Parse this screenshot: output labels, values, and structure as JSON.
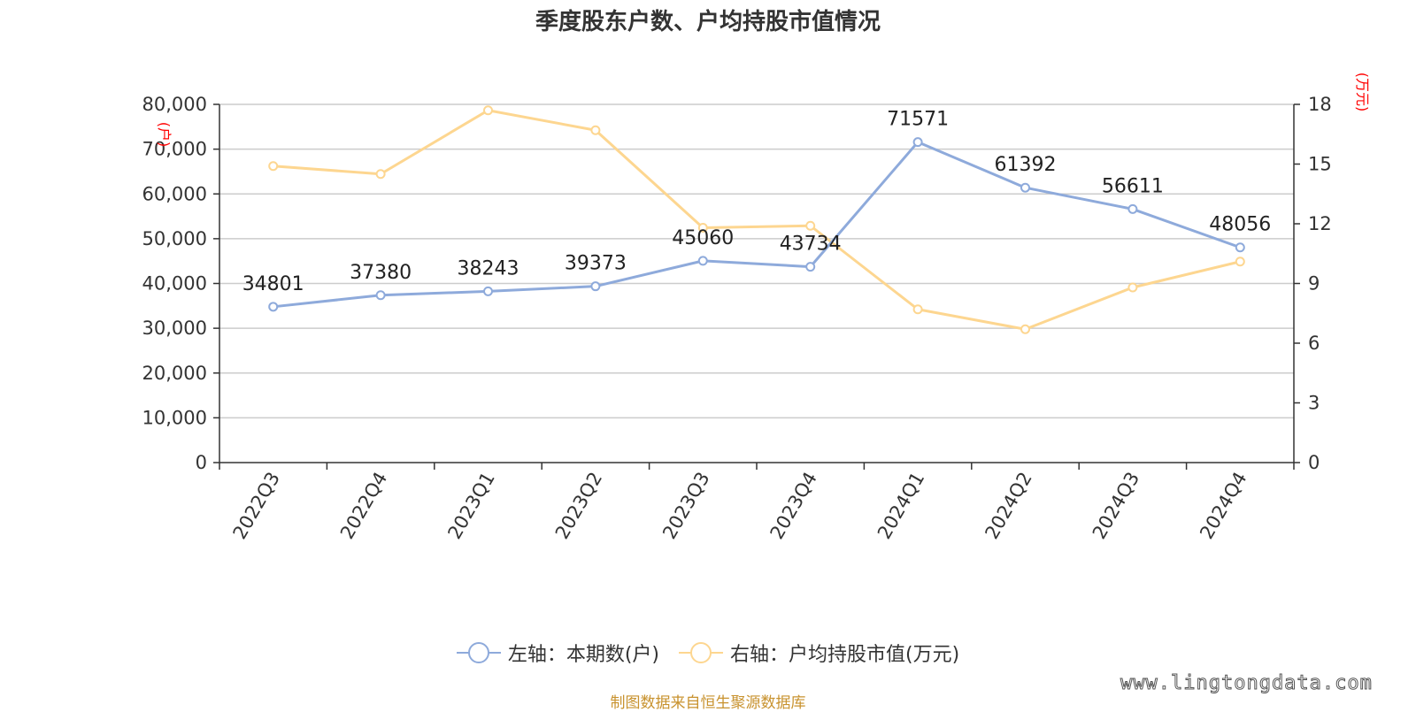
{
  "chart_data": {
    "type": "line",
    "title": "季度股东户数、户均持股市值情况",
    "categories": [
      "2022Q3",
      "2022Q4",
      "2023Q1",
      "2023Q2",
      "2023Q3",
      "2023Q4",
      "2024Q1",
      "2024Q2",
      "2024Q3",
      "2024Q4"
    ],
    "series": [
      {
        "name": "左轴：本期数(户)",
        "axis": "left",
        "color": "#8eaadb",
        "values": [
          34801,
          37380,
          38243,
          39373,
          45060,
          43734,
          71571,
          61392,
          56611,
          48056
        ],
        "data_labels": [
          "34801",
          "37380",
          "38243",
          "39373",
          "45060",
          "43734",
          "71571",
          "61392",
          "56611",
          "48056"
        ]
      },
      {
        "name": "右轴：户均持股市值(万元)",
        "axis": "right",
        "color": "#fdd690",
        "values": [
          14.9,
          14.5,
          17.7,
          16.7,
          11.8,
          11.9,
          7.7,
          6.7,
          8.8,
          10.1
        ]
      }
    ],
    "y_left": {
      "unit": "(户)",
      "ylim": [
        0,
        80000
      ],
      "ticks": [
        0,
        10000,
        20000,
        30000,
        40000,
        50000,
        60000,
        70000,
        80000
      ],
      "tick_labels": [
        "0",
        "10,000",
        "20,000",
        "30,000",
        "40,000",
        "50,000",
        "60,000",
        "70,000",
        "80,000"
      ]
    },
    "y_right": {
      "unit": "(万元)",
      "ylim": [
        0,
        18
      ],
      "ticks": [
        0,
        3,
        6,
        9,
        12,
        15,
        18
      ],
      "tick_labels": [
        "0",
        "3",
        "6",
        "9",
        "12",
        "15",
        "18"
      ]
    },
    "grid": true,
    "legend_position": "bottom"
  },
  "source": "制图数据来自恒生聚源数据库",
  "watermark": "www.lingtongdata.com"
}
